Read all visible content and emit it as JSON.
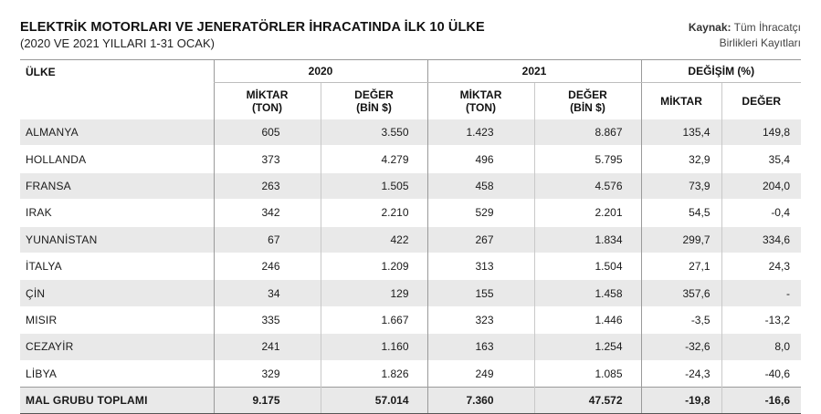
{
  "header": {
    "title": "ELEKTRİK MOTORLARI VE JENERATÖRLER İHRACATINDA İLK 10 ÜLKE",
    "subtitle": "(2020 VE 2021 YILLARI 1-31 OCAK)",
    "source_label": "Kaynak:",
    "source_line1": "Tüm İhracatçı",
    "source_line2": "Birlikleri Kayıtları"
  },
  "columns": {
    "country": "ÜLKE",
    "year2020": "2020",
    "year2021": "2021",
    "change": "DEĞİŞİM (%)",
    "miktar_ton_l1": "MİKTAR",
    "miktar_ton_l2": "(TON)",
    "deger_bin_l1": "DEĞER",
    "deger_bin_l2": "(BİN $)",
    "miktar": "MİKTAR",
    "deger": "DEĞER"
  },
  "rows": [
    {
      "country": "ALMANYA",
      "q2020": "605",
      "v2020": "3.550",
      "q2021": "1.423",
      "v2021": "8.867",
      "dq": "135,4",
      "dv": "149,8"
    },
    {
      "country": "HOLLANDA",
      "q2020": "373",
      "v2020": "4.279",
      "q2021": "496",
      "v2021": "5.795",
      "dq": "32,9",
      "dv": "35,4"
    },
    {
      "country": "FRANSA",
      "q2020": "263",
      "v2020": "1.505",
      "q2021": "458",
      "v2021": "4.576",
      "dq": "73,9",
      "dv": "204,0"
    },
    {
      "country": "IRAK",
      "q2020": "342",
      "v2020": "2.210",
      "q2021": "529",
      "v2021": "2.201",
      "dq": "54,5",
      "dv": "-0,4"
    },
    {
      "country": "YUNANİSTAN",
      "q2020": "67",
      "v2020": "422",
      "q2021": "267",
      "v2021": "1.834",
      "dq": "299,7",
      "dv": "334,6"
    },
    {
      "country": "İTALYA",
      "q2020": "246",
      "v2020": "1.209",
      "q2021": "313",
      "v2021": "1.504",
      "dq": "27,1",
      "dv": "24,3"
    },
    {
      "country": "ÇİN",
      "q2020": "34",
      "v2020": "129",
      "q2021": "155",
      "v2021": "1.458",
      "dq": "357,6",
      "dv": "-"
    },
    {
      "country": "MISIR",
      "q2020": "335",
      "v2020": "1.667",
      "q2021": "323",
      "v2021": "1.446",
      "dq": "-3,5",
      "dv": "-13,2"
    },
    {
      "country": "CEZAYİR",
      "q2020": "241",
      "v2020": "1.160",
      "q2021": "163",
      "v2021": "1.254",
      "dq": "-32,6",
      "dv": "8,0"
    },
    {
      "country": "LİBYA",
      "q2020": "329",
      "v2020": "1.826",
      "q2021": "249",
      "v2021": "1.085",
      "dq": "-24,3",
      "dv": "-40,6"
    }
  ],
  "total": {
    "country": "MAL GRUBU TOPLAMI",
    "q2020": "9.175",
    "v2020": "57.014",
    "q2021": "7.360",
    "v2021": "47.572",
    "dq": "-19,8",
    "dv": "-16,6"
  },
  "colors": {
    "shade": "#e9e9e9",
    "rule": "#9a9a9a"
  }
}
